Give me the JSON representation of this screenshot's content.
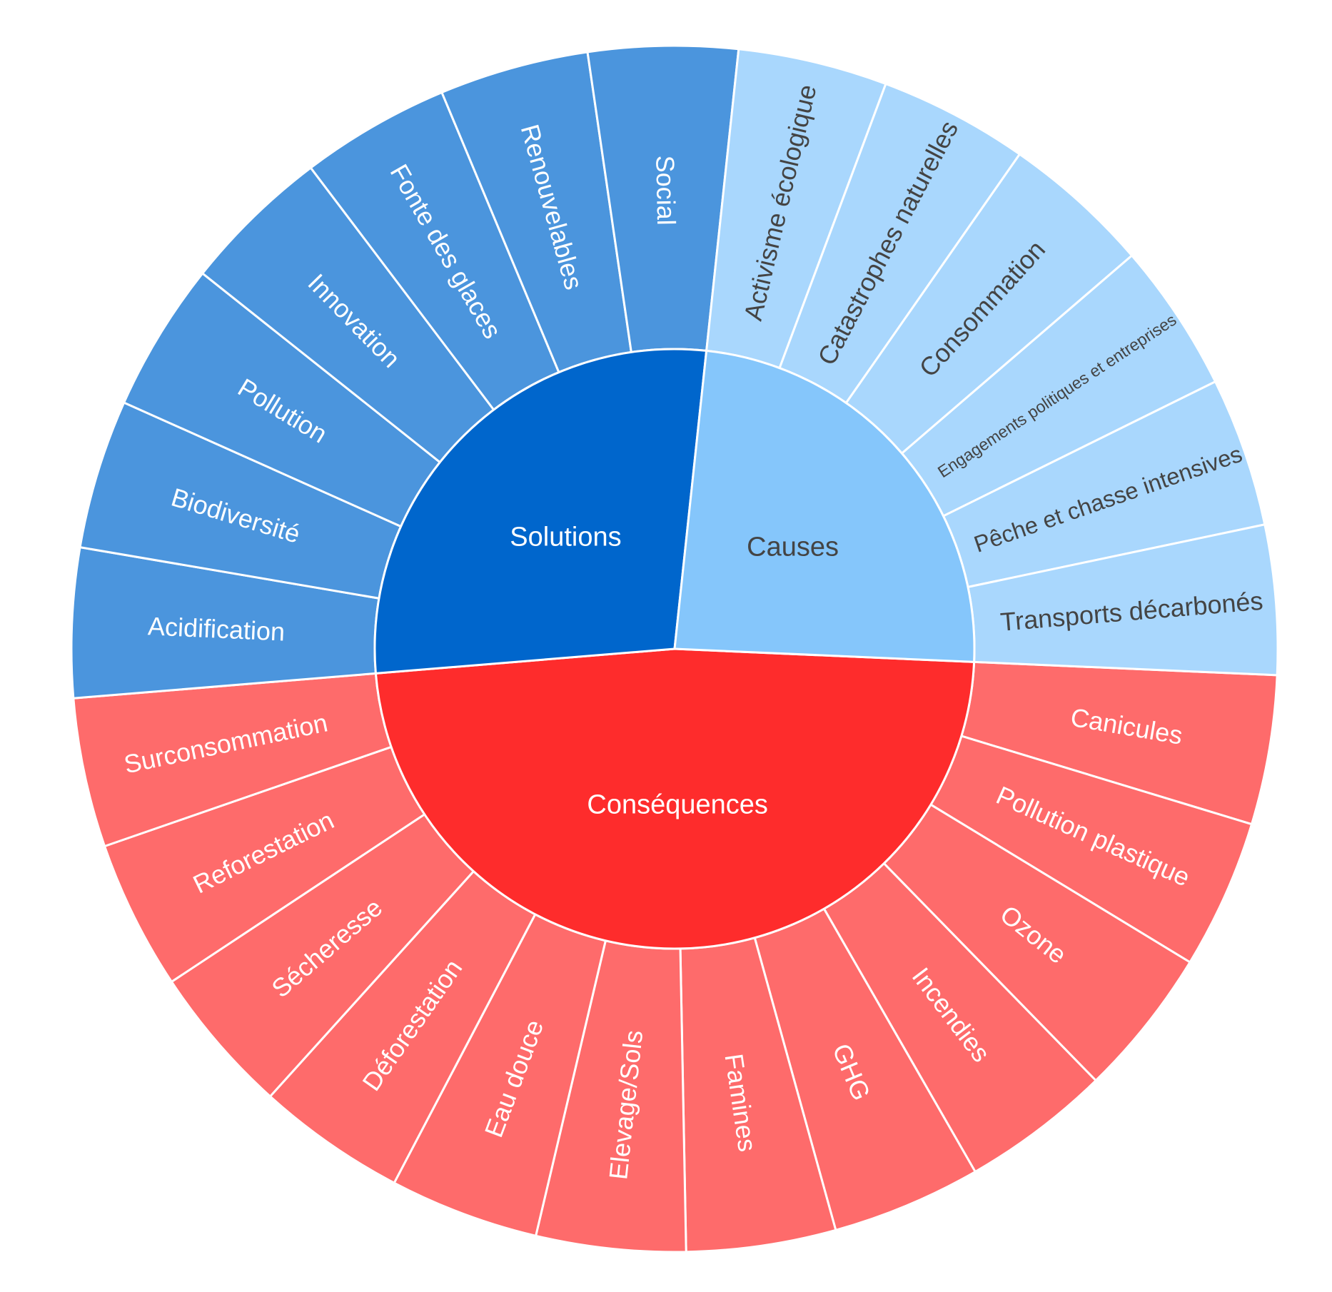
{
  "chart_data": {
    "type": "sunburst",
    "title": "",
    "groups": [
      {
        "name": "Conséquences",
        "color": "#fe2c2c",
        "leaf_color": "#fe6b6b",
        "text_color": "#ffffff",
        "children": [
          {
            "name": "Canicules",
            "value": 1
          },
          {
            "name": "Pollution plastique",
            "value": 1
          },
          {
            "name": "Ozone",
            "value": 1
          },
          {
            "name": "Incendies",
            "value": 1
          },
          {
            "name": "GHG",
            "value": 1
          },
          {
            "name": "Famines",
            "value": 1
          },
          {
            "name": "Elevage/Sols",
            "value": 1
          },
          {
            "name": "Eau douce",
            "value": 1
          },
          {
            "name": "Déforestation",
            "value": 1
          },
          {
            "name": "Sécheresse",
            "value": 1
          },
          {
            "name": "Reforestation",
            "value": 1
          },
          {
            "name": "Surconsommation",
            "value": 1
          }
        ]
      },
      {
        "name": "Solutions",
        "color": "#0066cc",
        "leaf_color": "#4b95dd",
        "text_color": "#ffffff",
        "children": [
          {
            "name": "Acidification",
            "value": 1
          },
          {
            "name": "Biodiversité",
            "value": 1
          },
          {
            "name": "Pollution",
            "value": 1
          },
          {
            "name": "Innovation",
            "value": 1
          },
          {
            "name": "Fonte des glaces",
            "value": 1
          },
          {
            "name": "Renouvelables",
            "value": 1
          },
          {
            "name": "Social",
            "value": 1
          }
        ]
      },
      {
        "name": "Causes",
        "color": "#85c6fb",
        "leaf_color": "#a9d7fd",
        "text_color": "#444444",
        "children": [
          {
            "name": "Activisme écologique",
            "value": 1
          },
          {
            "name": "Catastrophes naturelles",
            "value": 1
          },
          {
            "name": "Consommation",
            "value": 1
          },
          {
            "name": "Engagements politiques et entreprises",
            "value": 1
          },
          {
            "name": "Pêche et chasse intensives",
            "value": 1
          },
          {
            "name": "Transports décarbonés",
            "value": 1
          }
        ]
      }
    ]
  }
}
